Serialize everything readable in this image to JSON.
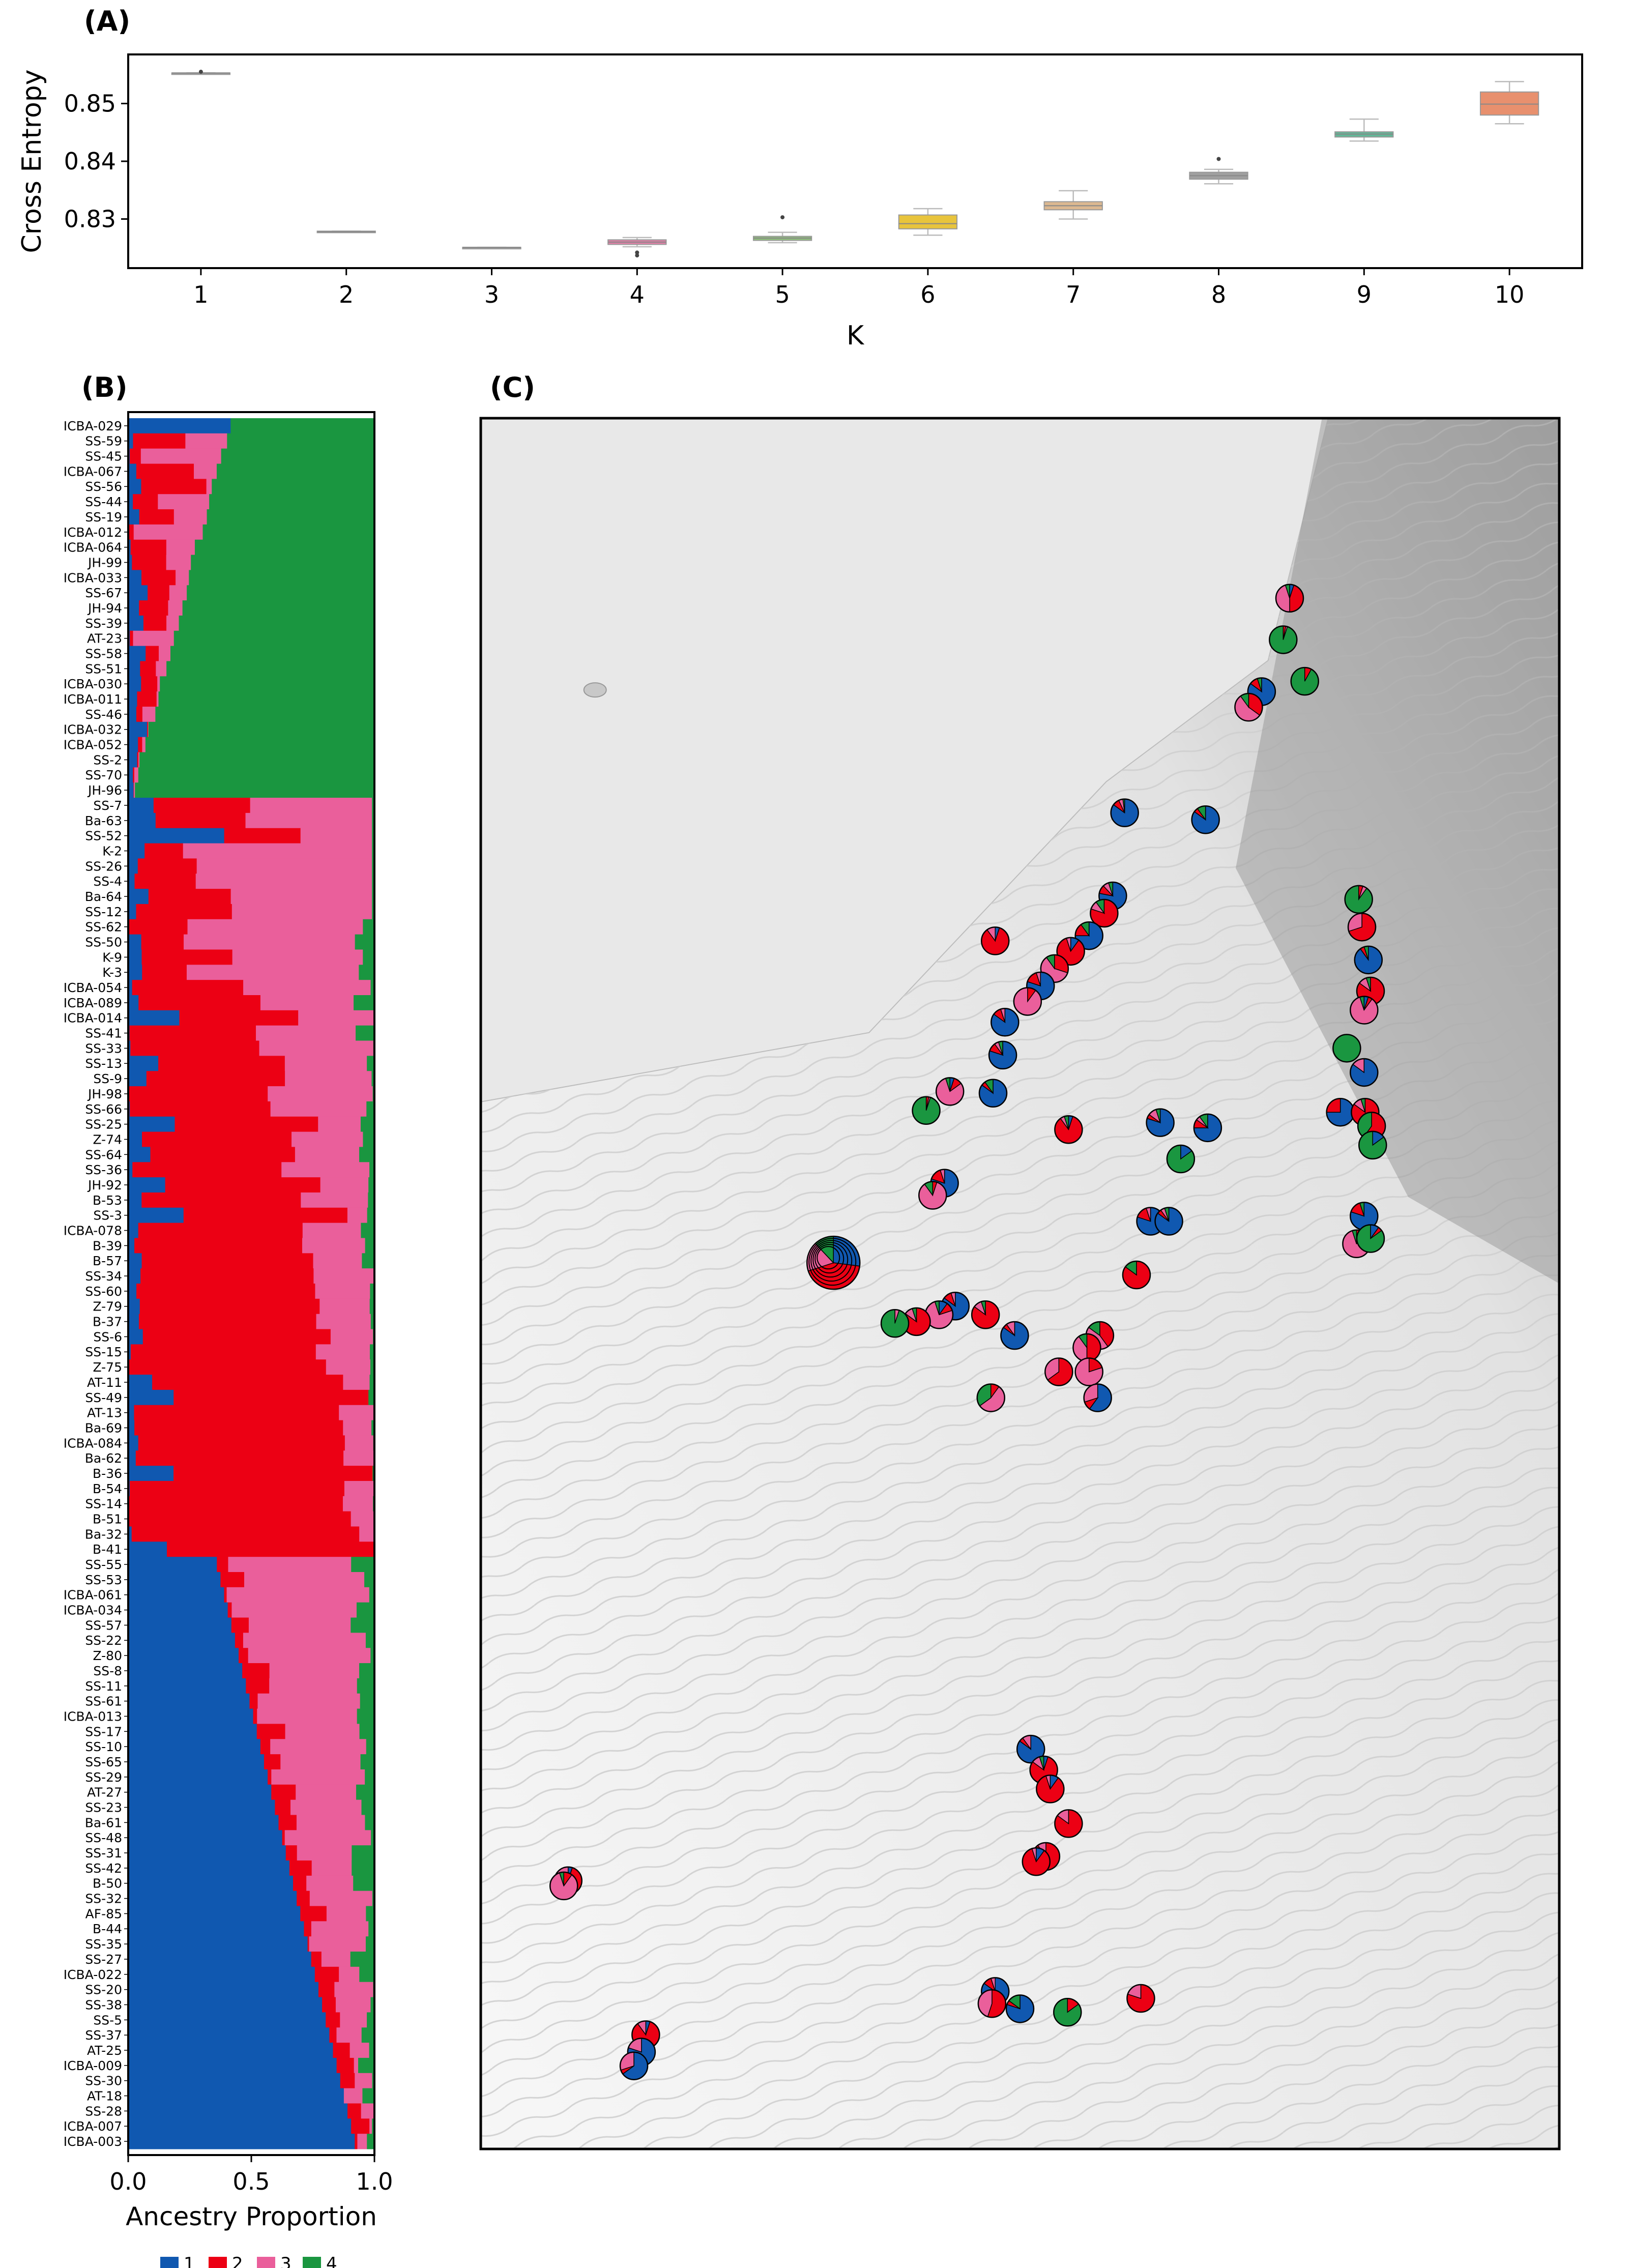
{
  "panels": {
    "a": "(A)",
    "b": "(B)",
    "c": "(C)"
  },
  "colors": {
    "k1": "#1058b0",
    "k2": "#ec0014",
    "k3": "#ea5f9b",
    "k4": "#1a9640",
    "map_bg": "#e8e8e8"
  },
  "chart_data": [
    {
      "type": "box",
      "panel": "A",
      "xlabel": "K",
      "ylabel": "Cross Entropy",
      "categories": [
        "1",
        "2",
        "3",
        "4",
        "5",
        "6",
        "7",
        "8",
        "9",
        "10"
      ],
      "ylim": [
        0.8215,
        0.8585
      ],
      "yticks": [
        "0.83",
        "0.84",
        "0.85"
      ],
      "box_colors": [
        "#9a9a9a",
        "#9a9a9a",
        "#9a9a9a",
        "#e07fa6",
        "#8ec07a",
        "#e8c43c",
        "#dcb890",
        "#a0a0a0",
        "#62b898",
        "#e8906e"
      ],
      "boxes": [
        {
          "q1": 0.8553,
          "median": 0.8553,
          "q3": 0.8553,
          "lo": 0.8553,
          "hi": 0.8553,
          "outliers": [
            0.8555
          ]
        },
        {
          "q1": 0.8278,
          "median": 0.8278,
          "q3": 0.8279,
          "lo": 0.8278,
          "hi": 0.8279,
          "outliers": []
        },
        {
          "q1": 0.825,
          "median": 0.8251,
          "q3": 0.8251,
          "lo": 0.825,
          "hi": 0.8251,
          "outliers": []
        },
        {
          "q1": 0.8256,
          "median": 0.826,
          "q3": 0.8264,
          "lo": 0.8252,
          "hi": 0.8268,
          "outliers": [
            0.8237,
            0.8242
          ]
        },
        {
          "q1": 0.8263,
          "median": 0.8267,
          "q3": 0.827,
          "lo": 0.8259,
          "hi": 0.8277,
          "outliers": [
            0.8303
          ]
        },
        {
          "q1": 0.8283,
          "median": 0.8292,
          "q3": 0.8307,
          "lo": 0.8272,
          "hi": 0.8318,
          "outliers": []
        },
        {
          "q1": 0.8316,
          "median": 0.8323,
          "q3": 0.833,
          "lo": 0.83,
          "hi": 0.8349,
          "outliers": []
        },
        {
          "q1": 0.8369,
          "median": 0.8375,
          "q3": 0.8381,
          "lo": 0.8361,
          "hi": 0.8386,
          "outliers": [
            0.8404
          ]
        },
        {
          "q1": 0.8442,
          "median": 0.8447,
          "q3": 0.8451,
          "lo": 0.8435,
          "hi": 0.8473,
          "outliers": []
        },
        {
          "q1": 0.848,
          "median": 0.8499,
          "q3": 0.852,
          "lo": 0.8465,
          "hi": 0.8538,
          "outliers": []
        }
      ]
    },
    {
      "type": "bar",
      "panel": "B",
      "orientation": "horizontal-stacked",
      "xlabel": "Ancestry Proportion",
      "xticks": [
        "0.0",
        "0.5",
        "1.0"
      ],
      "xlim": [
        0,
        1
      ],
      "legend": [
        "1",
        "2",
        "3",
        "4"
      ],
      "legend_position": "bottom",
      "series_colors": [
        "#1058b0",
        "#ec0014",
        "#ea5f9b",
        "#1a9640"
      ],
      "labels": [
        "ICBA-029",
        "SS-59",
        "SS-45",
        "ICBA-067",
        "SS-56",
        "SS-44",
        "SS-19",
        "ICBA-012",
        "ICBA-064",
        "JH-99",
        "ICBA-033",
        "SS-67",
        "JH-94",
        "SS-39",
        "AT-23",
        "SS-58",
        "SS-51",
        "ICBA-030",
        "ICBA-011",
        "SS-46",
        "ICBA-032",
        "ICBA-052",
        "SS-2",
        "SS-70",
        "JH-96",
        "SS-7",
        "Ba-63",
        "SS-52",
        "K-2",
        "SS-26",
        "SS-4",
        "Ba-64",
        "SS-12",
        "SS-62",
        "SS-50",
        "K-9",
        "K-3",
        "ICBA-054",
        "ICBA-089",
        "ICBA-014",
        "SS-41",
        "SS-33",
        "SS-13",
        "SS-9",
        "JH-98",
        "SS-66",
        "SS-25",
        "Z-74",
        "SS-64",
        "SS-36",
        "JH-92",
        "B-53",
        "SS-3",
        "ICBA-078",
        "B-39",
        "B-57",
        "SS-34",
        "SS-60",
        "Z-79",
        "B-37",
        "SS-6",
        "SS-15",
        "Z-75",
        "AT-11",
        "SS-49",
        "AT-13",
        "Ba-69",
        "ICBA-084",
        "Ba-62",
        "B-36",
        "B-54",
        "SS-14",
        "B-51",
        "Ba-32",
        "B-41",
        "SS-55",
        "SS-53",
        "ICBA-061",
        "ICBA-034",
        "SS-57",
        "SS-22",
        "Z-80",
        "SS-8",
        "SS-11",
        "SS-61",
        "ICBA-013",
        "SS-17",
        "SS-10",
        "SS-65",
        "SS-29",
        "AT-27",
        "SS-23",
        "Ba-61",
        "SS-48",
        "SS-31",
        "SS-42",
        "B-50",
        "SS-32",
        "AF-85",
        "B-44",
        "SS-35",
        "SS-27",
        "ICBA-022",
        "SS-20",
        "SS-38",
        "SS-5",
        "SS-37",
        "AT-25",
        "ICBA-009",
        "SS-30",
        "AT-18",
        "SS-28",
        "ICBA-007",
        "ICBA-003"
      ]
    },
    {
      "type": "map",
      "panel": "C",
      "pie_points": [
        {
          "x": 0.75,
          "y": 0.104,
          "p": [
            0.05,
            0.45,
            0.45,
            0.05
          ]
        },
        {
          "x": 0.744,
          "y": 0.128,
          "p": [
            0.0,
            0.03,
            0.02,
            0.95
          ]
        },
        {
          "x": 0.764,
          "y": 0.152,
          "p": [
            0.0,
            0.08,
            0.0,
            0.92
          ]
        },
        {
          "x": 0.724,
          "y": 0.158,
          "p": [
            0.85,
            0.1,
            0.0,
            0.05
          ]
        },
        {
          "x": 0.712,
          "y": 0.167,
          "p": [
            0.0,
            0.35,
            0.55,
            0.1
          ]
        },
        {
          "x": 0.597,
          "y": 0.228,
          "p": [
            0.85,
            0.08,
            0.05,
            0.02
          ]
        },
        {
          "x": 0.672,
          "y": 0.232,
          "p": [
            0.85,
            0.05,
            0.0,
            0.1
          ]
        },
        {
          "x": 0.586,
          "y": 0.276,
          "p": [
            0.78,
            0.1,
            0.07,
            0.05
          ]
        },
        {
          "x": 0.578,
          "y": 0.286,
          "p": [
            0.0,
            0.8,
            0.1,
            0.1
          ]
        },
        {
          "x": 0.564,
          "y": 0.299,
          "p": [
            0.75,
            0.15,
            0.0,
            0.1
          ]
        },
        {
          "x": 0.547,
          "y": 0.308,
          "p": [
            0.1,
            0.85,
            0.05,
            0.0
          ]
        },
        {
          "x": 0.532,
          "y": 0.318,
          "p": [
            0.0,
            0.3,
            0.6,
            0.1
          ]
        },
        {
          "x": 0.519,
          "y": 0.328,
          "p": [
            0.8,
            0.15,
            0.05,
            0.0
          ]
        },
        {
          "x": 0.507,
          "y": 0.337,
          "p": [
            0.0,
            0.1,
            0.9,
            0.0
          ]
        },
        {
          "x": 0.486,
          "y": 0.349,
          "p": [
            0.85,
            0.1,
            0.05,
            0.0
          ]
        },
        {
          "x": 0.477,
          "y": 0.302,
          "p": [
            0.05,
            0.85,
            0.1,
            0.0
          ]
        },
        {
          "x": 0.484,
          "y": 0.368,
          "p": [
            0.8,
            0.1,
            0.05,
            0.05
          ]
        },
        {
          "x": 0.435,
          "y": 0.389,
          "p": [
            0.05,
            0.1,
            0.8,
            0.05
          ]
        },
        {
          "x": 0.475,
          "y": 0.39,
          "p": [
            0.85,
            0.05,
            0.0,
            0.1
          ]
        },
        {
          "x": 0.413,
          "y": 0.4,
          "p": [
            0.0,
            0.03,
            0.02,
            0.95
          ]
        },
        {
          "x": 0.545,
          "y": 0.411,
          "p": [
            0.05,
            0.85,
            0.05,
            0.05
          ]
        },
        {
          "x": 0.63,
          "y": 0.407,
          "p": [
            0.8,
            0.05,
            0.1,
            0.05
          ]
        },
        {
          "x": 0.674,
          "y": 0.41,
          "p": [
            0.75,
            0.1,
            0.05,
            0.1
          ]
        },
        {
          "x": 0.649,
          "y": 0.428,
          "p": [
            0.15,
            0.0,
            0.0,
            0.85
          ]
        },
        {
          "x": 0.43,
          "y": 0.442,
          "p": [
            0.8,
            0.15,
            0.05,
            0.0
          ]
        },
        {
          "x": 0.419,
          "y": 0.449,
          "p": [
            0.0,
            0.05,
            0.85,
            0.1
          ]
        },
        {
          "x": 0.621,
          "y": 0.464,
          "p": [
            0.8,
            0.15,
            0.05,
            0.0
          ]
        },
        {
          "x": 0.638,
          "y": 0.464,
          "p": [
            0.85,
            0.05,
            0.05,
            0.05
          ]
        },
        {
          "x": 0.608,
          "y": 0.495,
          "p": [
            0.0,
            0.85,
            0.0,
            0.15
          ]
        },
        {
          "x": 0.44,
          "y": 0.513,
          "p": [
            0.85,
            0.1,
            0.05,
            0.0
          ]
        },
        {
          "x": 0.425,
          "y": 0.518,
          "p": [
            0.1,
            0.1,
            0.75,
            0.05
          ]
        },
        {
          "x": 0.404,
          "y": 0.522,
          "p": [
            0.0,
            0.85,
            0.1,
            0.05
          ]
        },
        {
          "x": 0.384,
          "y": 0.523,
          "p": [
            0.0,
            0.0,
            0.05,
            0.95
          ]
        },
        {
          "x": 0.468,
          "y": 0.518,
          "p": [
            0.0,
            0.85,
            0.1,
            0.05
          ]
        },
        {
          "x": 0.495,
          "y": 0.53,
          "p": [
            0.85,
            0.05,
            0.1,
            0.0
          ]
        },
        {
          "x": 0.574,
          "y": 0.53,
          "p": [
            0.0,
            0.4,
            0.45,
            0.15
          ]
        },
        {
          "x": 0.562,
          "y": 0.537,
          "p": [
            0.0,
            0.5,
            0.4,
            0.1
          ]
        },
        {
          "x": 0.536,
          "y": 0.551,
          "p": [
            0.0,
            0.65,
            0.35,
            0.0
          ]
        },
        {
          "x": 0.564,
          "y": 0.551,
          "p": [
            0.0,
            0.2,
            0.8,
            0.0
          ]
        },
        {
          "x": 0.572,
          "y": 0.566,
          "p": [
            0.6,
            0.1,
            0.3,
            0.0
          ]
        },
        {
          "x": 0.473,
          "y": 0.566,
          "p": [
            0.0,
            0.1,
            0.55,
            0.35
          ]
        },
        {
          "x": 0.814,
          "y": 0.278,
          "p": [
            0.0,
            0.05,
            0.05,
            0.9
          ]
        },
        {
          "x": 0.817,
          "y": 0.294,
          "p": [
            0.0,
            0.7,
            0.3,
            0.0
          ]
        },
        {
          "x": 0.823,
          "y": 0.313,
          "p": [
            0.9,
            0.05,
            0.0,
            0.05
          ]
        },
        {
          "x": 0.825,
          "y": 0.331,
          "p": [
            0.0,
            0.85,
            0.1,
            0.05
          ]
        },
        {
          "x": 0.819,
          "y": 0.342,
          "p": [
            0.05,
            0.05,
            0.85,
            0.05
          ]
        },
        {
          "x": 0.803,
          "y": 0.364,
          "p": [
            0.0,
            0.0,
            0.0,
            1.0
          ]
        },
        {
          "x": 0.819,
          "y": 0.378,
          "p": [
            0.85,
            0.0,
            0.15,
            0.0
          ]
        },
        {
          "x": 0.797,
          "y": 0.401,
          "p": [
            0.75,
            0.25,
            0.0,
            0.0
          ]
        },
        {
          "x": 0.82,
          "y": 0.401,
          "p": [
            0.0,
            0.85,
            0.1,
            0.05
          ]
        },
        {
          "x": 0.826,
          "y": 0.409,
          "p": [
            0.0,
            0.6,
            0.0,
            0.4
          ]
        },
        {
          "x": 0.827,
          "y": 0.42,
          "p": [
            0.15,
            0.0,
            0.0,
            0.85
          ]
        },
        {
          "x": 0.819,
          "y": 0.461,
          "p": [
            0.8,
            0.15,
            0.0,
            0.05
          ]
        },
        {
          "x": 0.812,
          "y": 0.477,
          "p": [
            0.0,
            0.15,
            0.8,
            0.05
          ]
        },
        {
          "x": 0.825,
          "y": 0.474,
          "p": [
            0.1,
            0.05,
            0.0,
            0.85
          ]
        },
        {
          "x": 0.51,
          "y": 0.769,
          "p": [
            0.85,
            0.05,
            0.1,
            0.0
          ]
        },
        {
          "x": 0.522,
          "y": 0.781,
          "p": [
            0.05,
            0.8,
            0.1,
            0.05
          ]
        },
        {
          "x": 0.528,
          "y": 0.792,
          "p": [
            0.1,
            0.85,
            0.05,
            0.0
          ]
        },
        {
          "x": 0.545,
          "y": 0.812,
          "p": [
            0.0,
            0.85,
            0.15,
            0.0
          ]
        },
        {
          "x": 0.524,
          "y": 0.831,
          "p": [
            0.0,
            0.9,
            0.1,
            0.0
          ]
        },
        {
          "x": 0.515,
          "y": 0.834,
          "p": [
            0.1,
            0.85,
            0.05,
            0.0
          ]
        },
        {
          "x": 0.081,
          "y": 0.845,
          "p": [
            0.05,
            0.8,
            0.15,
            0.0
          ]
        },
        {
          "x": 0.077,
          "y": 0.848,
          "p": [
            0.0,
            0.1,
            0.85,
            0.05
          ]
        },
        {
          "x": 0.477,
          "y": 0.909,
          "p": [
            0.85,
            0.1,
            0.05,
            0.0
          ]
        },
        {
          "x": 0.474,
          "y": 0.916,
          "p": [
            0.0,
            0.55,
            0.45,
            0.0
          ]
        },
        {
          "x": 0.5,
          "y": 0.919,
          "p": [
            0.8,
            0.05,
            0.0,
            0.15
          ]
        },
        {
          "x": 0.544,
          "y": 0.921,
          "p": [
            0.0,
            0.15,
            0.0,
            0.85
          ]
        },
        {
          "x": 0.612,
          "y": 0.913,
          "p": [
            0.0,
            0.8,
            0.2,
            0.0
          ]
        },
        {
          "x": 0.153,
          "y": 0.934,
          "p": [
            0.05,
            0.85,
            0.1,
            0.0
          ]
        },
        {
          "x": 0.149,
          "y": 0.944,
          "p": [
            0.8,
            0.0,
            0.2,
            0.0
          ]
        },
        {
          "x": 0.142,
          "y": 0.952,
          "p": [
            0.65,
            0.05,
            0.3,
            0.0
          ]
        }
      ],
      "large_pie": {
        "x": 0.327,
        "y": 0.488,
        "p": [
          0.27,
          0.43,
          0.18,
          0.12
        ]
      }
    }
  ]
}
